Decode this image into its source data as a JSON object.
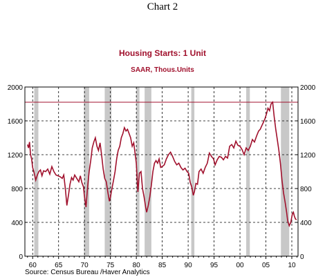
{
  "caption": "Chart 2",
  "source": "Source: Census Bureau /Haver Analytics",
  "colors": {
    "line": "#a0102c",
    "recession": "#c8c8c8",
    "title": "#a0102c"
  },
  "chart_data": {
    "type": "line",
    "title": "Housing Starts: 1 Unit",
    "subtitle": "SAAR, Thous.Units",
    "x_range": [
      1958.5,
      2011.2
    ],
    "ylim": [
      0,
      2000
    ],
    "y_ticks": [
      0,
      400,
      800,
      1200,
      1600,
      2000
    ],
    "y_tick_labels": [
      "0",
      "400",
      "800",
      "1200",
      "1600",
      "2000"
    ],
    "x_ticks": [
      1960,
      1965,
      1970,
      1975,
      1980,
      1985,
      1990,
      1995,
      2000,
      2005,
      2010
    ],
    "x_tick_labels": [
      "60",
      "65",
      "70",
      "75",
      "80",
      "85",
      "90",
      "95",
      "00",
      "05",
      "10"
    ],
    "grid": true,
    "reference_line": 1820,
    "recessions": [
      [
        1960.3,
        1961.1
      ],
      [
        1969.9,
        1970.9
      ],
      [
        1973.9,
        1975.2
      ],
      [
        1980.0,
        1980.6
      ],
      [
        1981.6,
        1982.9
      ],
      [
        1990.6,
        1991.2
      ],
      [
        2001.2,
        2001.9
      ],
      [
        2007.9,
        2009.5
      ]
    ],
    "series": [
      {
        "x": [
          1959.0,
          1959.2,
          1959.4,
          1959.6,
          1959.8,
          1960.0,
          1960.3,
          1960.6,
          1960.9,
          1961.2,
          1961.5,
          1961.8,
          1962.1,
          1962.5,
          1962.9,
          1963.3,
          1963.7,
          1964.1,
          1964.5,
          1964.9,
          1965.3,
          1965.7,
          1966.0,
          1966.3,
          1966.6,
          1966.9,
          1967.2,
          1967.5,
          1967.8,
          1968.1,
          1968.5,
          1968.9,
          1969.2,
          1969.5,
          1969.8,
          1970.0,
          1970.3,
          1970.6,
          1970.9,
          1971.2,
          1971.5,
          1971.8,
          1972.1,
          1972.4,
          1972.7,
          1973.0,
          1973.3,
          1973.6,
          1973.9,
          1974.2,
          1974.5,
          1974.8,
          1975.0,
          1975.3,
          1975.6,
          1975.9,
          1976.2,
          1976.5,
          1976.8,
          1977.1,
          1977.4,
          1977.7,
          1978.0,
          1978.3,
          1978.6,
          1978.9,
          1979.2,
          1979.5,
          1979.8,
          1980.0,
          1980.3,
          1980.6,
          1980.9,
          1981.2,
          1981.5,
          1981.8,
          1982.0,
          1982.3,
          1982.6,
          1982.9,
          1983.2,
          1983.5,
          1983.8,
          1984.1,
          1984.4,
          1984.7,
          1985.0,
          1985.4,
          1985.8,
          1986.2,
          1986.6,
          1987.0,
          1987.4,
          1987.8,
          1988.2,
          1988.6,
          1989.0,
          1989.4,
          1989.8,
          1990.1,
          1990.4,
          1990.7,
          1991.0,
          1991.2,
          1991.5,
          1991.8,
          1992.1,
          1992.5,
          1992.9,
          1993.3,
          1993.7,
          1994.1,
          1994.5,
          1994.9,
          1995.2,
          1995.6,
          1996.0,
          1996.4,
          1996.8,
          1997.2,
          1997.6,
          1998.0,
          1998.4,
          1998.8,
          1999.2,
          1999.6,
          2000.0,
          2000.4,
          2000.8,
          2001.2,
          2001.6,
          2002.0,
          2002.4,
          2002.8,
          2003.2,
          2003.6,
          2003.9,
          2004.2,
          2004.5,
          2004.8,
          2005.1,
          2005.4,
          2005.7,
          2006.0,
          2006.3,
          2006.6,
          2006.9,
          2007.2,
          2007.5,
          2007.8,
          2008.1,
          2008.4,
          2008.7,
          2009.0,
          2009.2,
          2009.5,
          2009.8,
          2010.1,
          2010.3,
          2010.5,
          2010.7,
          2010.9
        ],
        "values": [
          1320,
          1280,
          1350,
          1200,
          1150,
          1050,
          980,
          900,
          960,
          1000,
          1020,
          950,
          1010,
          1000,
          1030,
          970,
          1060,
          1000,
          960,
          950,
          940,
          920,
          960,
          800,
          600,
          720,
          850,
          930,
          900,
          960,
          920,
          880,
          950,
          870,
          820,
          700,
          580,
          820,
          1000,
          1130,
          1280,
          1350,
          1400,
          1300,
          1250,
          1340,
          1200,
          1030,
          920,
          880,
          760,
          650,
          700,
          800,
          900,
          1000,
          1150,
          1250,
          1300,
          1400,
          1450,
          1520,
          1480,
          1500,
          1450,
          1400,
          1300,
          1340,
          1200,
          1100,
          760,
          980,
          1000,
          800,
          700,
          580,
          520,
          600,
          700,
          840,
          1000,
          1100,
          1130,
          1100,
          1150,
          1050,
          1060,
          1080,
          1150,
          1200,
          1230,
          1180,
          1120,
          1080,
          1100,
          1050,
          1020,
          1040,
          1000,
          980,
          870,
          820,
          720,
          760,
          860,
          850,
          1000,
          1030,
          980,
          1050,
          1100,
          1220,
          1180,
          1150,
          1080,
          1140,
          1180,
          1170,
          1140,
          1180,
          1160,
          1300,
          1320,
          1280,
          1360,
          1310,
          1300,
          1260,
          1200,
          1280,
          1250,
          1300,
          1380,
          1350,
          1420,
          1480,
          1500,
          1540,
          1580,
          1620,
          1680,
          1750,
          1720,
          1800,
          1820,
          1650,
          1500,
          1380,
          1250,
          1100,
          900,
          750,
          640,
          520,
          420,
          360,
          400,
          500,
          520,
          470,
          440,
          430
        ]
      }
    ]
  }
}
